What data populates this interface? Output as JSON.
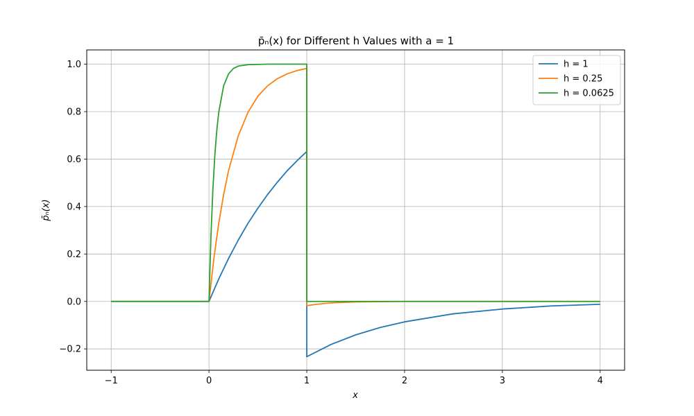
{
  "chart_data": {
    "type": "line",
    "title": "p̄ₙ(x) for Different h Values with a = 1",
    "xlabel": "x",
    "ylabel": "p̄ₙ(x)",
    "xlim": [
      -1.25,
      4.25
    ],
    "ylim": [
      -0.29,
      1.06
    ],
    "xticks": [
      -1,
      0,
      1,
      2,
      3,
      4
    ],
    "yticks": [
      -0.2,
      0.0,
      0.2,
      0.4,
      0.6,
      0.8,
      1.0
    ],
    "xtick_labels": [
      "−1",
      "0",
      "1",
      "2",
      "3",
      "4"
    ],
    "ytick_labels": [
      "−0.2",
      "0.0",
      "0.2",
      "0.4",
      "0.6",
      "0.8",
      "1.0"
    ],
    "grid": true,
    "legend_position": "top-right",
    "series": [
      {
        "name": "h = 1",
        "color": "#1f77b4",
        "x": [
          -1,
          -0.5,
          0,
          0.1,
          0.2,
          0.3,
          0.4,
          0.5,
          0.6,
          0.7,
          0.8,
          0.9,
          1.0,
          1.0,
          1.25,
          1.5,
          1.75,
          2.0,
          2.5,
          3.0,
          3.5,
          4.0
        ],
        "y": [
          0,
          0,
          0,
          0.095,
          0.181,
          0.259,
          0.33,
          0.393,
          0.451,
          0.503,
          0.551,
          0.593,
          0.632,
          -0.233,
          -0.181,
          -0.141,
          -0.11,
          -0.086,
          -0.052,
          -0.032,
          -0.019,
          -0.012
        ]
      },
      {
        "name": "h = 0.25",
        "color": "#ff7f0e",
        "x": [
          -1,
          -0.5,
          0,
          0.05,
          0.1,
          0.15,
          0.2,
          0.3,
          0.4,
          0.5,
          0.6,
          0.7,
          0.8,
          0.9,
          1.0,
          1.0,
          1.1,
          1.2,
          1.3,
          1.5,
          2.0,
          3.0,
          4.0
        ],
        "y": [
          0,
          0,
          0,
          0.181,
          0.33,
          0.451,
          0.551,
          0.699,
          0.798,
          0.865,
          0.909,
          0.939,
          0.959,
          0.973,
          0.982,
          -0.018,
          -0.012,
          -0.008,
          -0.005,
          -0.002,
          0,
          0,
          0
        ]
      },
      {
        "name": "h = 0.0625",
        "color": "#2ca02c",
        "x": [
          -1,
          -0.5,
          0,
          0.02,
          0.04,
          0.06,
          0.08,
          0.1,
          0.15,
          0.2,
          0.25,
          0.3,
          0.4,
          0.6,
          1.0,
          1.0,
          1.05,
          1.1,
          1.5,
          2.0,
          3.0,
          4.0
        ],
        "y": [
          0,
          0,
          0,
          0.274,
          0.473,
          0.617,
          0.722,
          0.798,
          0.909,
          0.959,
          0.982,
          0.992,
          0.998,
          1.0,
          1.0,
          0,
          0,
          0,
          0,
          0,
          0,
          0
        ]
      }
    ]
  }
}
